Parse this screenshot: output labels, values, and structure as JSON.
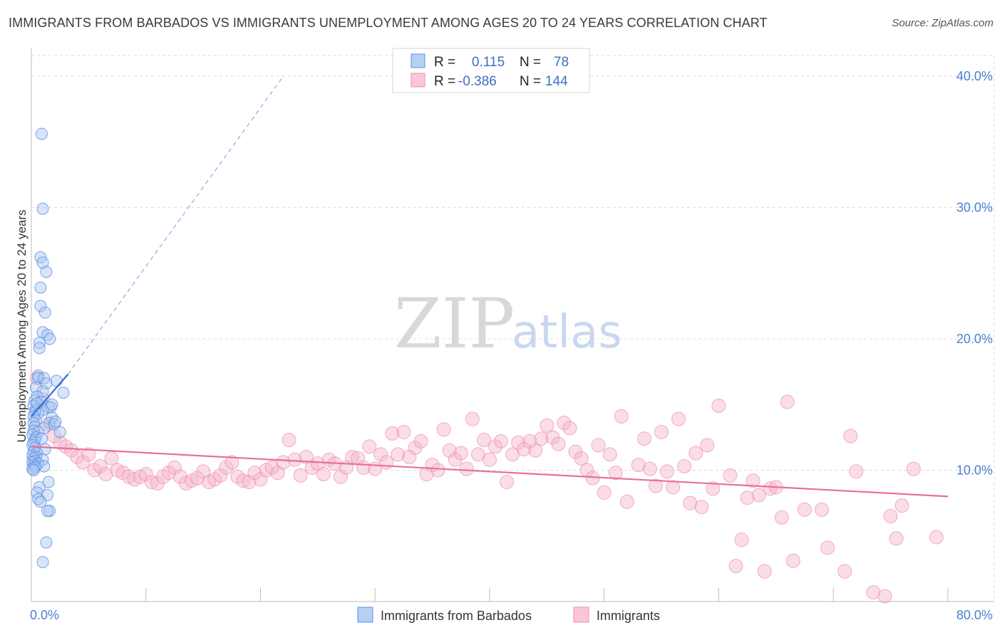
{
  "title": "IMMIGRANTS FROM BARBADOS VS IMMIGRANTS UNEMPLOYMENT AMONG AGES 20 TO 24 YEARS CORRELATION CHART",
  "source": "Source: ZipAtlas.com",
  "watermark": {
    "zip": "ZIP",
    "atlas": "atlas"
  },
  "legend": {
    "rows": [
      {
        "r_label": "R =",
        "r_value": "0.115",
        "n_label": "N =",
        "n_value": "78",
        "color": "#5b8fe0"
      },
      {
        "r_label": "R =",
        "r_value": "-0.386",
        "n_label": "N =",
        "n_value": "144",
        "color": "#f08bb0"
      }
    ]
  },
  "bottom_legend": [
    {
      "label": "Immigrants from Barbados",
      "color": "#5b8fe0"
    },
    {
      "label": "Immigrants",
      "color": "#f08bb0"
    }
  ],
  "chart_data": {
    "type": "scatter",
    "title": "IMMIGRANTS FROM BARBADOS VS IMMIGRANTS UNEMPLOYMENT AMONG AGES 20 TO 24 YEARS CORRELATION CHART",
    "xlabel": "",
    "ylabel": "Unemployment Among Ages 20 to 24 years",
    "xlim": [
      0,
      80
    ],
    "ylim": [
      0,
      42
    ],
    "x_tick_labels": [
      "0.0%",
      "80.0%"
    ],
    "y_ticks": [
      10,
      20,
      30,
      40
    ],
    "y_tick_labels": [
      "10.0%",
      "20.0%",
      "30.0%",
      "40.0%"
    ],
    "grid": true,
    "series": [
      {
        "name": "Immigrants from Barbados",
        "color": "#5b8fe0",
        "trend": {
          "x0": 0,
          "y0": 14.1,
          "x1": 3.2,
          "y1": 17.3,
          "dash_to_x": 22.0,
          "dash_to_y": 40.0
        },
        "points": [
          [
            0.9,
            35.6
          ],
          [
            1.0,
            29.9
          ],
          [
            0.8,
            26.2
          ],
          [
            1.0,
            25.8
          ],
          [
            1.3,
            25.1
          ],
          [
            0.8,
            23.9
          ],
          [
            0.8,
            22.5
          ],
          [
            1.2,
            22.0
          ],
          [
            1.0,
            20.5
          ],
          [
            1.4,
            20.3
          ],
          [
            1.6,
            20.0
          ],
          [
            0.7,
            19.7
          ],
          [
            0.7,
            19.3
          ],
          [
            0.6,
            17.2
          ],
          [
            0.6,
            17.0
          ],
          [
            1.1,
            17.0
          ],
          [
            2.2,
            16.8
          ],
          [
            1.3,
            16.6
          ],
          [
            0.4,
            16.3
          ],
          [
            1.0,
            16.0
          ],
          [
            2.8,
            15.9
          ],
          [
            0.5,
            15.6
          ],
          [
            0.3,
            15.3
          ],
          [
            0.9,
            15.2
          ],
          [
            0.2,
            14.9
          ],
          [
            1.5,
            14.8
          ],
          [
            1.7,
            14.8
          ],
          [
            0.4,
            14.6
          ],
          [
            1.0,
            14.6
          ],
          [
            0.3,
            14.4
          ],
          [
            0.6,
            14.3
          ],
          [
            0.2,
            14.1
          ],
          [
            1.8,
            14.0
          ],
          [
            0.4,
            13.8
          ],
          [
            0.2,
            13.6
          ],
          [
            1.6,
            13.6
          ],
          [
            2.0,
            13.5
          ],
          [
            0.3,
            13.3
          ],
          [
            1.1,
            13.2
          ],
          [
            0.2,
            13.0
          ],
          [
            0.6,
            12.9
          ],
          [
            2.5,
            12.9
          ],
          [
            0.1,
            12.7
          ],
          [
            0.4,
            12.5
          ],
          [
            0.3,
            12.3
          ],
          [
            0.2,
            12.1
          ],
          [
            0.1,
            11.9
          ],
          [
            0.3,
            11.7
          ],
          [
            1.2,
            11.6
          ],
          [
            0.2,
            11.4
          ],
          [
            0.5,
            11.3
          ],
          [
            0.1,
            11.1
          ],
          [
            0.4,
            11.0
          ],
          [
            0.2,
            10.9
          ],
          [
            1.0,
            10.8
          ],
          [
            0.3,
            10.7
          ],
          [
            0.1,
            10.6
          ],
          [
            0.6,
            10.5
          ],
          [
            0.2,
            10.4
          ],
          [
            0.4,
            10.3
          ],
          [
            1.1,
            10.3
          ],
          [
            0.3,
            10.2
          ],
          [
            0.1,
            10.1
          ],
          [
            0.2,
            10.0
          ],
          [
            1.5,
            9.1
          ],
          [
            0.7,
            8.7
          ],
          [
            0.5,
            8.3
          ],
          [
            1.4,
            8.1
          ],
          [
            0.6,
            7.8
          ],
          [
            0.8,
            7.6
          ],
          [
            1.6,
            6.9
          ],
          [
            1.4,
            6.9
          ],
          [
            1.3,
            4.5
          ],
          [
            1.0,
            3.0
          ],
          [
            0.5,
            15.1
          ],
          [
            1.8,
            15.0
          ],
          [
            0.9,
            12.4
          ],
          [
            2.1,
            13.7
          ]
        ]
      },
      {
        "name": "Immigrants",
        "color": "#f08bb0",
        "trend": {
          "x0": 0,
          "y0": 11.8,
          "x1": 80,
          "y1": 8.0
        },
        "points": [
          [
            0.5,
            17.0
          ],
          [
            1.0,
            15.4
          ],
          [
            1.5,
            13.5
          ],
          [
            2.5,
            12.1
          ],
          [
            3.0,
            11.8
          ],
          [
            3.5,
            11.5
          ],
          [
            4.0,
            11.0
          ],
          [
            4.5,
            10.6
          ],
          [
            5.0,
            11.2
          ],
          [
            5.5,
            10.0
          ],
          [
            6.0,
            10.3
          ],
          [
            6.5,
            9.7
          ],
          [
            7.0,
            10.9
          ],
          [
            7.5,
            10.0
          ],
          [
            8.0,
            9.8
          ],
          [
            8.5,
            9.5
          ],
          [
            9.0,
            9.3
          ],
          [
            9.5,
            9.5
          ],
          [
            10.0,
            9.7
          ],
          [
            10.5,
            9.1
          ],
          [
            11.0,
            9.0
          ],
          [
            11.5,
            9.5
          ],
          [
            12.0,
            9.8
          ],
          [
            12.5,
            10.2
          ],
          [
            13.0,
            9.5
          ],
          [
            13.5,
            9.0
          ],
          [
            14.0,
            9.2
          ],
          [
            14.5,
            9.4
          ],
          [
            15.0,
            9.9
          ],
          [
            15.5,
            9.1
          ],
          [
            16.0,
            9.3
          ],
          [
            16.5,
            9.6
          ],
          [
            17.0,
            10.2
          ],
          [
            17.5,
            10.6
          ],
          [
            18.0,
            9.5
          ],
          [
            18.5,
            9.2
          ],
          [
            19.0,
            9.1
          ],
          [
            19.5,
            9.8
          ],
          [
            20.0,
            9.3
          ],
          [
            20.5,
            10.0
          ],
          [
            21.0,
            10.2
          ],
          [
            21.5,
            9.8
          ],
          [
            22.0,
            10.6
          ],
          [
            22.5,
            12.3
          ],
          [
            23.0,
            10.8
          ],
          [
            23.5,
            9.6
          ],
          [
            24.0,
            11.0
          ],
          [
            24.5,
            10.2
          ],
          [
            25.0,
            10.5
          ],
          [
            25.5,
            9.7
          ],
          [
            26.0,
            10.8
          ],
          [
            26.5,
            10.5
          ],
          [
            27.0,
            9.5
          ],
          [
            27.5,
            10.2
          ],
          [
            28.0,
            11.0
          ],
          [
            28.5,
            10.9
          ],
          [
            29.0,
            10.2
          ],
          [
            29.5,
            11.8
          ],
          [
            30.0,
            10.1
          ],
          [
            30.5,
            11.2
          ],
          [
            31.0,
            10.6
          ],
          [
            31.5,
            12.8
          ],
          [
            32.0,
            11.2
          ],
          [
            32.5,
            12.9
          ],
          [
            33.0,
            11.0
          ],
          [
            33.5,
            11.7
          ],
          [
            34.0,
            12.2
          ],
          [
            34.5,
            9.7
          ],
          [
            35.0,
            10.4
          ],
          [
            35.5,
            10.0
          ],
          [
            36.0,
            13.1
          ],
          [
            36.5,
            11.5
          ],
          [
            37.0,
            10.8
          ],
          [
            37.5,
            11.3
          ],
          [
            38.0,
            10.1
          ],
          [
            38.5,
            13.9
          ],
          [
            39.0,
            11.2
          ],
          [
            39.5,
            12.3
          ],
          [
            40.0,
            10.8
          ],
          [
            40.5,
            11.8
          ],
          [
            41.0,
            12.2
          ],
          [
            41.5,
            9.1
          ],
          [
            42.0,
            11.2
          ],
          [
            42.5,
            12.1
          ],
          [
            43.0,
            11.6
          ],
          [
            43.5,
            12.2
          ],
          [
            44.0,
            11.5
          ],
          [
            44.5,
            12.4
          ],
          [
            45.0,
            13.4
          ],
          [
            45.5,
            12.5
          ],
          [
            46.0,
            12.0
          ],
          [
            46.5,
            13.6
          ],
          [
            47.0,
            13.2
          ],
          [
            47.5,
            11.4
          ],
          [
            48.0,
            10.9
          ],
          [
            48.5,
            10.0
          ],
          [
            49.0,
            9.4
          ],
          [
            49.5,
            11.9
          ],
          [
            50.0,
            8.3
          ],
          [
            50.5,
            11.2
          ],
          [
            51.0,
            9.8
          ],
          [
            51.5,
            14.1
          ],
          [
            52.0,
            7.6
          ],
          [
            53.0,
            10.4
          ],
          [
            53.5,
            12.4
          ],
          [
            54.0,
            10.1
          ],
          [
            54.5,
            8.8
          ],
          [
            55.0,
            12.9
          ],
          [
            55.5,
            9.9
          ],
          [
            56.0,
            8.7
          ],
          [
            56.5,
            13.9
          ],
          [
            57.0,
            10.3
          ],
          [
            57.5,
            7.5
          ],
          [
            58.0,
            11.3
          ],
          [
            58.5,
            7.2
          ],
          [
            59.0,
            11.9
          ],
          [
            59.5,
            8.6
          ],
          [
            60.0,
            14.9
          ],
          [
            61.0,
            9.6
          ],
          [
            61.5,
            2.7
          ],
          [
            62.0,
            4.7
          ],
          [
            62.5,
            7.9
          ],
          [
            63.0,
            9.2
          ],
          [
            63.5,
            8.1
          ],
          [
            64.0,
            2.3
          ],
          [
            64.5,
            8.6
          ],
          [
            65.0,
            8.7
          ],
          [
            65.5,
            6.4
          ],
          [
            66.0,
            15.2
          ],
          [
            66.5,
            3.1
          ],
          [
            67.5,
            7.0
          ],
          [
            69.0,
            7.0
          ],
          [
            69.5,
            4.1
          ],
          [
            71.0,
            2.3
          ],
          [
            71.5,
            12.6
          ],
          [
            72.0,
            9.9
          ],
          [
            73.5,
            0.7
          ],
          [
            74.5,
            0.4
          ],
          [
            75.0,
            6.5
          ],
          [
            75.5,
            4.8
          ],
          [
            76.0,
            7.3
          ],
          [
            77.0,
            10.1
          ],
          [
            79.0,
            4.9
          ],
          [
            2.0,
            12.6
          ]
        ]
      }
    ]
  }
}
